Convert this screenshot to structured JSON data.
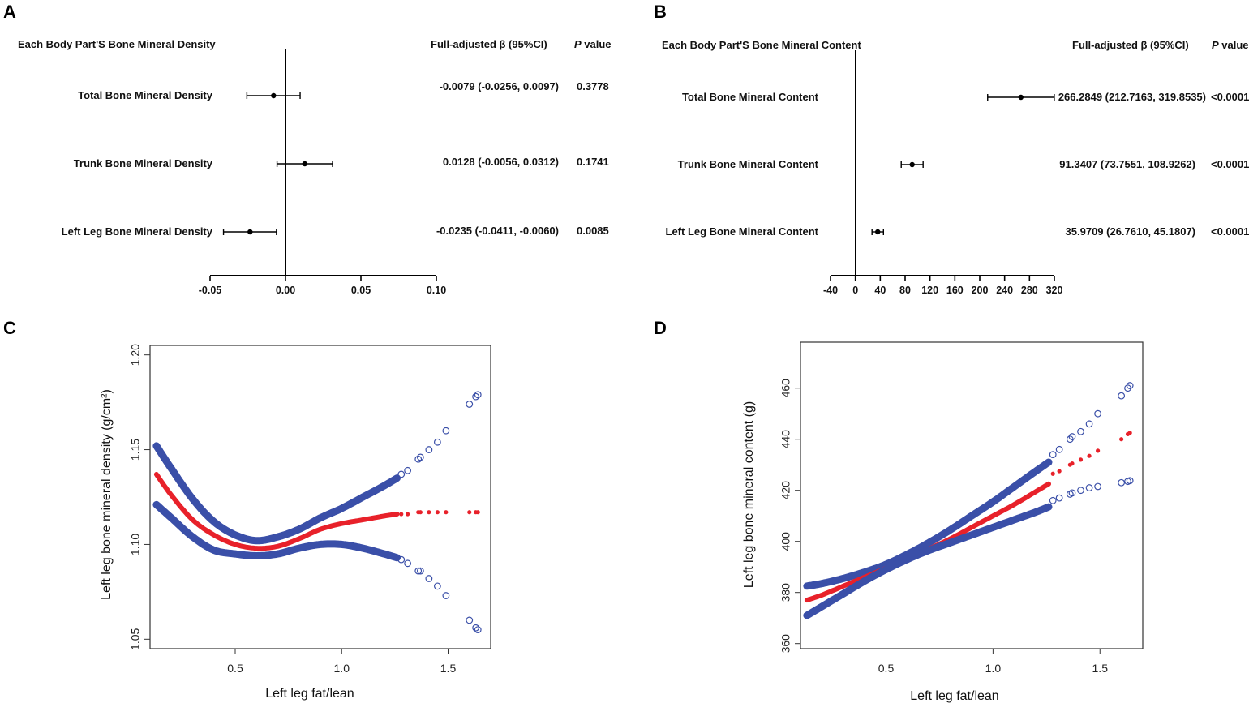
{
  "panels": {
    "A": "A",
    "B": "B",
    "C": "C",
    "D": "D"
  },
  "colors": {
    "ci_band": "#3a4fa8",
    "fit_line": "#e8212a",
    "forest": "#000000"
  },
  "chart_data": [
    {
      "id": "A",
      "type": "forest",
      "header_label": "Each Body Part'S Bone Mineral Density",
      "header_beta": "Full-adjusted β (95%CI)",
      "header_p_italic": "P",
      "header_p_rest": " value",
      "xlim": [
        -0.05,
        0.1
      ],
      "ticks": [
        -0.05,
        0.0,
        0.05,
        0.1
      ],
      "tick_labels": [
        "-0.05",
        "0.00",
        "0.05",
        "0.10"
      ],
      "reference": 0,
      "rows": [
        {
          "label": "Total Bone Mineral Density",
          "beta": -0.0079,
          "lo": -0.0256,
          "hi": 0.0097,
          "ci_text": "-0.0079 (-0.0256, 0.0097)",
          "p": "0.3778"
        },
        {
          "label": "Trunk Bone Mineral Density",
          "beta": 0.0128,
          "lo": -0.0056,
          "hi": 0.0312,
          "ci_text": "0.0128 (-0.0056, 0.0312)",
          "p": "0.1741"
        },
        {
          "label": "Left Leg Bone Mineral Density",
          "beta": -0.0235,
          "lo": -0.0411,
          "hi": -0.006,
          "ci_text": "-0.0235 (-0.0411, -0.0060)",
          "p": "0.0085"
        }
      ]
    },
    {
      "id": "B",
      "type": "forest",
      "header_label": "Each Body Part'S Bone Mineral Content",
      "header_beta": "Full-adjusted β (95%CI)",
      "header_p_italic": "P",
      "header_p_rest": " value",
      "xlim": [
        -40,
        320
      ],
      "ticks": [
        -40,
        0,
        40,
        80,
        120,
        160,
        200,
        240,
        280,
        320
      ],
      "tick_labels": [
        "-40",
        "0",
        "40",
        "80",
        "120",
        "160",
        "200",
        "240",
        "280",
        "320"
      ],
      "reference": 0,
      "rows": [
        {
          "label": "Total Bone Mineral Content",
          "beta": 266.2849,
          "lo": 212.7163,
          "hi": 319.8535,
          "ci_text": "266.2849 (212.7163, 319.8535)",
          "p": "<0.0001"
        },
        {
          "label": "Trunk Bone Mineral Content",
          "beta": 91.3407,
          "lo": 73.7551,
          "hi": 108.9262,
          "ci_text": "91.3407 (73.7551, 108.9262)",
          "p": "<0.0001"
        },
        {
          "label": "Left Leg Bone Mineral Content",
          "beta": 35.9709,
          "lo": 26.761,
          "hi": 45.1807,
          "ci_text": "35.9709 (26.7610, 45.1807)",
          "p": "<0.0001"
        }
      ]
    },
    {
      "id": "C",
      "type": "line",
      "xlabel": "Left leg fat/lean",
      "ylabel": "Left leg bone mineral density (g/cm²)",
      "xlim": [
        0.1,
        1.7
      ],
      "ylim": [
        1.045,
        1.205
      ],
      "xticks": [
        0.5,
        1.0,
        1.5
      ],
      "xtick_labels": [
        "0.5",
        "1.0",
        "1.5"
      ],
      "yticks": [
        1.05,
        1.1,
        1.15,
        1.2
      ],
      "ytick_labels": [
        "1.05",
        "1.10",
        "1.15",
        "1.20"
      ],
      "x": [
        0.13,
        0.2,
        0.3,
        0.4,
        0.5,
        0.6,
        0.7,
        0.8,
        0.9,
        1.0,
        1.1,
        1.2,
        1.26
      ],
      "series": [
        {
          "name": "upper 95% CI",
          "role": "ci",
          "values": [
            1.152,
            1.14,
            1.124,
            1.112,
            1.105,
            1.102,
            1.104,
            1.108,
            1.114,
            1.119,
            1.125,
            1.131,
            1.135
          ]
        },
        {
          "name": "fitted",
          "role": "fit",
          "values": [
            1.137,
            1.126,
            1.113,
            1.105,
            1.1,
            1.098,
            1.099,
            1.103,
            1.108,
            1.111,
            1.113,
            1.115,
            1.116
          ]
        },
        {
          "name": "lower 95% CI",
          "role": "ci",
          "values": [
            1.121,
            1.114,
            1.104,
            1.097,
            1.095,
            1.094,
            1.095,
            1.098,
            1.1,
            1.1,
            1.098,
            1.095,
            1.093
          ]
        }
      ],
      "sparse_x": [
        1.28,
        1.31,
        1.36,
        1.37,
        1.41,
        1.45,
        1.49,
        1.6,
        1.63,
        1.64
      ],
      "sparse_series": [
        {
          "name": "upper 95% CI",
          "role": "ci",
          "values": [
            1.137,
            1.139,
            1.145,
            1.146,
            1.15,
            1.154,
            1.16,
            1.174,
            1.178,
            1.179
          ]
        },
        {
          "name": "fitted",
          "role": "fit",
          "values": [
            1.116,
            1.116,
            1.117,
            1.117,
            1.117,
            1.117,
            1.117,
            1.117,
            1.117,
            1.117
          ]
        },
        {
          "name": "lower 95% CI",
          "role": "ci",
          "values": [
            1.092,
            1.09,
            1.086,
            1.086,
            1.082,
            1.078,
            1.073,
            1.06,
            1.056,
            1.055
          ]
        }
      ]
    },
    {
      "id": "D",
      "type": "line",
      "xlabel": "Left leg fat/lean",
      "ylabel": "Left leg bone mineral content (g)",
      "xlim": [
        0.1,
        1.7
      ],
      "ylim": [
        358,
        478
      ],
      "xticks": [
        0.5,
        1.0,
        1.5
      ],
      "xtick_labels": [
        "0.5",
        "1.0",
        "1.5"
      ],
      "yticks": [
        360,
        380,
        400,
        420,
        440,
        460
      ],
      "ytick_labels": [
        "360",
        "380",
        "400",
        "420",
        "440",
        "460"
      ],
      "x": [
        0.13,
        0.2,
        0.3,
        0.4,
        0.5,
        0.6,
        0.7,
        0.8,
        0.9,
        1.0,
        1.1,
        1.2,
        1.26
      ],
      "series": [
        {
          "name": "upper 95% CI",
          "role": "ci",
          "values": [
            382.5,
            383.5,
            385.5,
            388,
            391,
            395,
            399.5,
            404.5,
            410,
            415.5,
            421.5,
            427.5,
            431
          ]
        },
        {
          "name": "fitted",
          "role": "fit",
          "values": [
            377,
            379,
            382.5,
            386,
            389.5,
            393,
            397,
            401,
            405.5,
            410,
            414.5,
            419.5,
            422.5
          ]
        },
        {
          "name": "lower 95% CI",
          "role": "ci",
          "values": [
            371,
            374.5,
            379.5,
            384.5,
            389,
            393,
            396.5,
            399.5,
            402.5,
            405.5,
            408.5,
            411.5,
            413.5
          ]
        }
      ],
      "sparse_x": [
        1.28,
        1.31,
        1.36,
        1.37,
        1.41,
        1.45,
        1.49,
        1.6,
        1.63,
        1.64
      ],
      "sparse_series": [
        {
          "name": "upper 95% CI",
          "role": "ci",
          "values": [
            434,
            436,
            440,
            441,
            443,
            446,
            450,
            457,
            460,
            461
          ]
        },
        {
          "name": "fitted",
          "role": "fit",
          "values": [
            426.5,
            427.5,
            430,
            430.5,
            432,
            433.5,
            435.5,
            440,
            442,
            442.5
          ]
        },
        {
          "name": "lower 95% CI",
          "role": "ci",
          "values": [
            416,
            417,
            418.5,
            419,
            420,
            421,
            421.5,
            423,
            423.5,
            423.8
          ]
        }
      ]
    }
  ]
}
